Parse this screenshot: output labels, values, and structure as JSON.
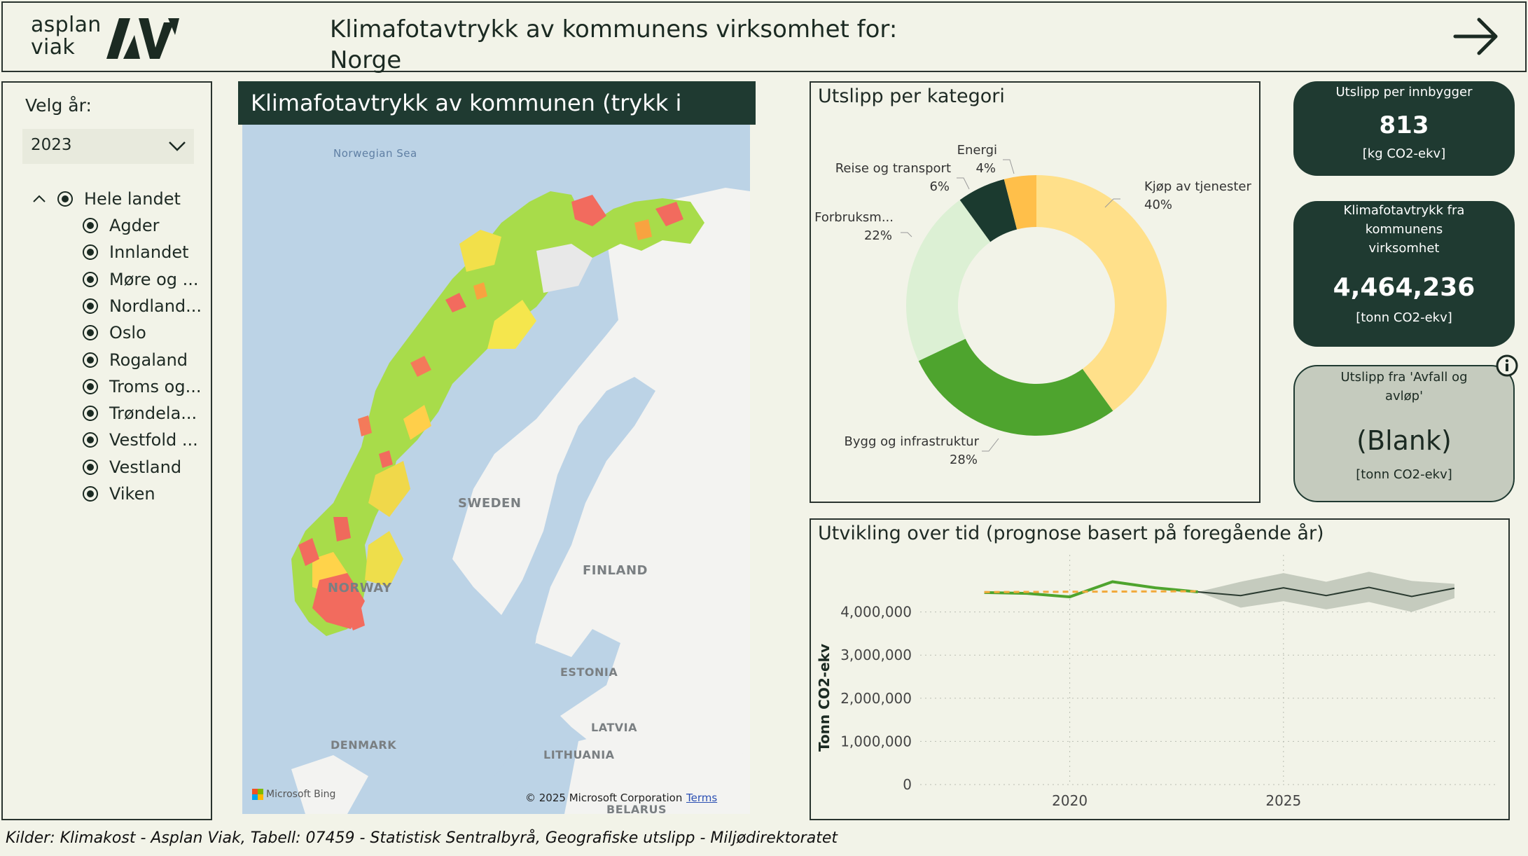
{
  "header": {
    "logo_line1": "asplan",
    "logo_line2": "viak",
    "title_line1": "Klimafotavtrykk av kommunens virksomhet for:",
    "title_line2": "Norge",
    "arrow_icon": "arrow-right-icon"
  },
  "slicer": {
    "year_label": "Velg år:",
    "year_value": "2023",
    "root_label": "Hele landet",
    "items": [
      "Agder",
      "Innlandet",
      "Møre og ...",
      "Nordland...",
      "Oslo",
      "Rogaland",
      "Troms og...",
      "Trøndela...",
      "Vestfold ...",
      "Vestland",
      "Viken"
    ]
  },
  "map": {
    "title": "Klimafotavtrykk av kommunen (trykk i kartet)",
    "labels": {
      "norwegian_sea": "Norwegian Sea",
      "sweden": "SWEDEN",
      "finland": "FINLAND",
      "norway": "NORWAY",
      "estonia": "ESTONIA",
      "latvia": "LATVIA",
      "lithuania": "LITHUANIA",
      "denmark": "DENMARK",
      "belarus": "BELARUS"
    },
    "attribution_bing": "Microsoft Bing",
    "attribution_copy": "© 2025 Microsoft Corporation",
    "attribution_terms": "Terms"
  },
  "donut": {
    "title": "Utslipp per kategori",
    "slices": [
      {
        "label": "Kjøp av tjenester",
        "pct": "40%",
        "value": 40,
        "color": "#ffe08a"
      },
      {
        "label": "Bygg og infrastruktur",
        "pct": "28%",
        "value": 28,
        "color": "#4ea42e"
      },
      {
        "label": "Forbruksm...",
        "pct": "22%",
        "value": 22,
        "color": "#dcf0d4"
      },
      {
        "label": "Reise og transport",
        "pct": "6%",
        "value": 6,
        "color": "#1b3a2f"
      },
      {
        "label": "Energi",
        "pct": "4%",
        "value": 4,
        "color": "#ffbf4a"
      }
    ]
  },
  "kpi": {
    "per_capita_title": "Utslipp per innbygger",
    "per_capita_value": "813",
    "per_capita_unit": "[kg CO2-ekv]",
    "total_title": "Klimafotavtrykk fra kommunens virksomhet",
    "total_value": "4,464,236",
    "total_unit": "[tonn CO2-ekv]",
    "waste_title": "Utslipp fra 'Avfall og avløp'",
    "waste_value": "(Blank)",
    "waste_unit": "[tonn CO2-ekv]"
  },
  "chart_data": {
    "type": "line",
    "title": "Utvikling over tid (prognose basert på foregående år)",
    "ylabel": "Tonn CO2-ekv",
    "xlabel": "",
    "ylim": [
      0,
      5000000
    ],
    "y_ticks": [
      {
        "value": 0,
        "label": "0"
      },
      {
        "value": 1000000,
        "label": "1,000,000"
      },
      {
        "value": 2000000,
        "label": "2,000,000"
      },
      {
        "value": 3000000,
        "label": "3,000,000"
      },
      {
        "value": 4000000,
        "label": "4,000,000"
      }
    ],
    "xlim": [
      2016.5,
      2030
    ],
    "x_ticks": [
      {
        "value": 2020,
        "label": "2020"
      },
      {
        "value": 2025,
        "label": "2025"
      }
    ],
    "series": [
      {
        "kind": "actual",
        "color": "#4ea42e",
        "x": [
          2018,
          2019,
          2020,
          2021,
          2022,
          2023
        ],
        "y": [
          4450000,
          4430000,
          4350000,
          4700000,
          4560000,
          4464236
        ]
      },
      {
        "kind": "trend",
        "color": "#f2a93b",
        "x": [
          2018,
          2023
        ],
        "y": [
          4460000,
          4480000
        ]
      },
      {
        "kind": "forecast",
        "color": "#2a3a30",
        "x": [
          2023,
          2024,
          2025,
          2026,
          2027,
          2028,
          2029
        ],
        "y": [
          4464236,
          4380000,
          4560000,
          4380000,
          4570000,
          4360000,
          4550000
        ],
        "upper": [
          4464236,
          4700000,
          4900000,
          4700000,
          4930000,
          4720000,
          4650000
        ],
        "lower": [
          4464236,
          4100000,
          4250000,
          4060000,
          4230000,
          4000000,
          4320000
        ]
      }
    ]
  },
  "footer": {
    "sources": "Kilder: Klimakost - Asplan Viak, Tabell: 07459 - Statistisk Sentralbyrå, Geografiske utslipp - Miljødirektoratet"
  }
}
